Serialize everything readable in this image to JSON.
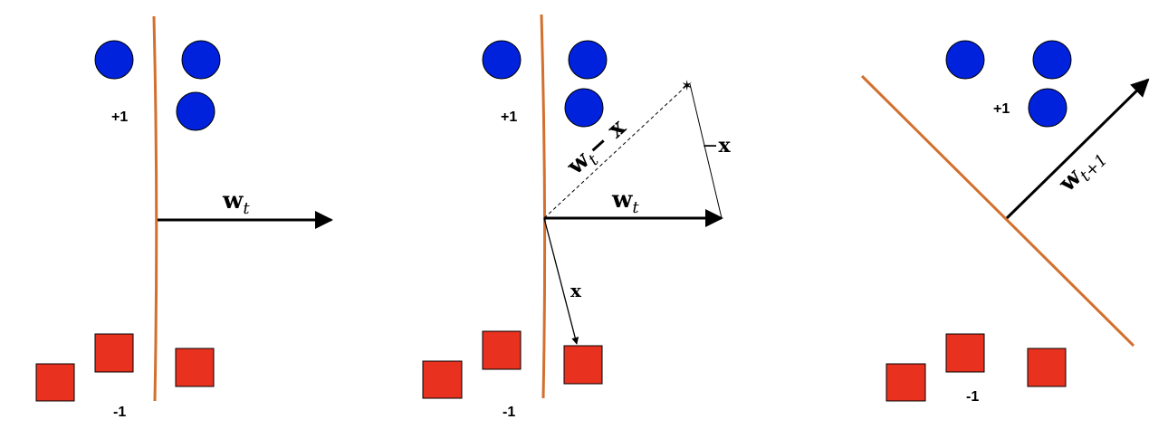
{
  "colors": {
    "positive_point": "#0022dd",
    "negative_point": "#e8321f",
    "boundary": "#d2702e",
    "vector": "#000000"
  },
  "panels": [
    {
      "pos_label": "+1",
      "neg_label": "-1",
      "weight_vector": {
        "bold": "w",
        "subscript": "t"
      }
    },
    {
      "pos_label": "+1",
      "neg_label": "-1",
      "weight_vector": {
        "bold": "w",
        "subscript": "t"
      },
      "difference_vector": {
        "bold": "w",
        "subscript": "t",
        "suffix": "− x"
      },
      "neg_x_label": {
        "prefix": "−",
        "bold": "x"
      },
      "x_label": {
        "bold": "x"
      }
    },
    {
      "pos_label": "+1",
      "neg_label": "-1",
      "weight_vector": {
        "bold": "w",
        "subscript": "t+1"
      }
    }
  ]
}
